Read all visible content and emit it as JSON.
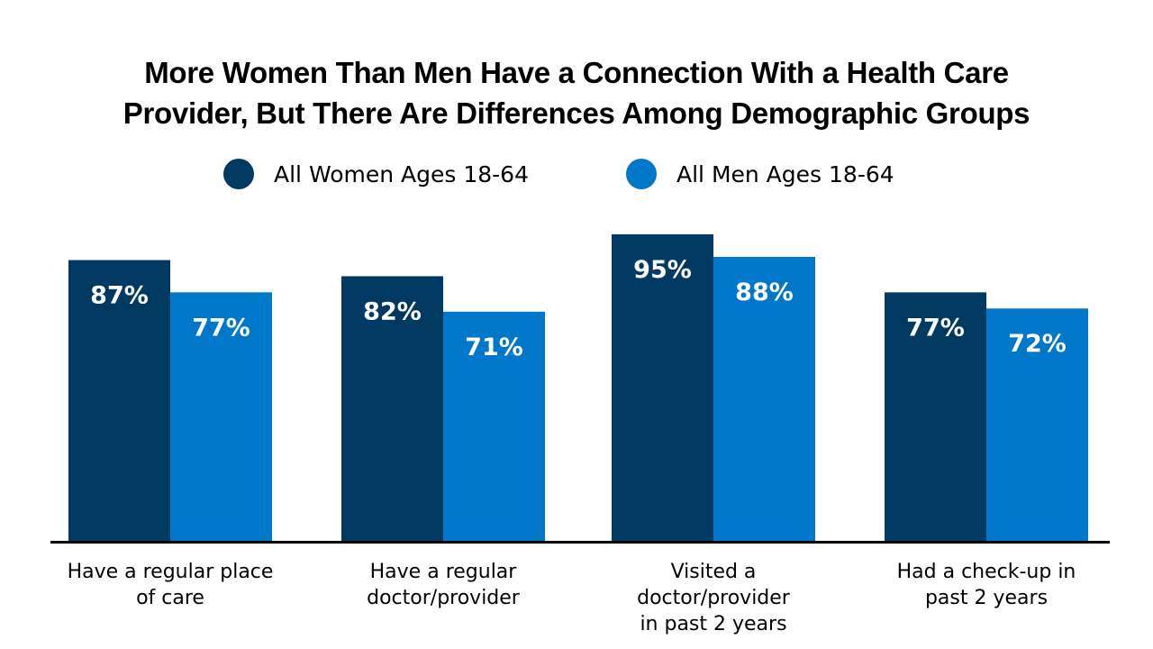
{
  "title": {
    "line1": "More Women Than Men Have a Connection With a Health Care",
    "line2": "Provider, But There Are Differences Among Demographic Groups"
  },
  "chart_data": {
    "type": "bar",
    "categories": [
      "Have a regular place of care",
      "Have a regular doctor/provider",
      "Visited a doctor/provider in past 2 years",
      "Had a check-up in past 2 years"
    ],
    "category_lines": [
      [
        "Have a regular place",
        "of care"
      ],
      [
        "Have a regular",
        "doctor/provider"
      ],
      [
        "Visited a doctor/provider",
        "in past 2 years"
      ],
      [
        "Had a check-up in",
        "past 2 years"
      ]
    ],
    "series": [
      {
        "name": "All Women Ages 18-64",
        "values": [
          87,
          82,
          95,
          77
        ],
        "labels": [
          "87%",
          "82%",
          "95%",
          "77%"
        ],
        "color": "#003a63"
      },
      {
        "name": "All Men Ages 18-64",
        "values": [
          77,
          71,
          88,
          72
        ],
        "labels": [
          "77%",
          "71%",
          "88%",
          "72%"
        ],
        "color": "#0077c8"
      }
    ],
    "ylim": [
      0,
      100
    ],
    "legend_position": "top-center",
    "grid": false
  }
}
